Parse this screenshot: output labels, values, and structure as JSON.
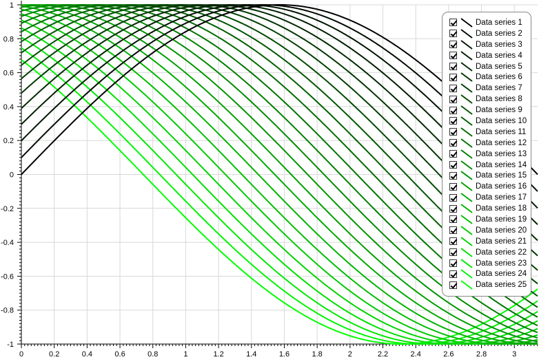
{
  "chart_data": {
    "type": "line",
    "title": "",
    "xlabel": "",
    "ylabel": "",
    "xlim": [
      0,
      3.1416
    ],
    "ylim": [
      -1,
      1
    ],
    "grid": true,
    "legend_placement": "top-right",
    "x_ticks": [
      "0",
      "0.2",
      "0.4",
      "0.6",
      "0.8",
      "1",
      "1.2",
      "1.4",
      "1.6",
      "1.8",
      "2",
      "2.2",
      "2.4",
      "2.6",
      "2.8",
      "3"
    ],
    "y_ticks": [
      "1",
      "0.8",
      "0.6",
      "0.4",
      "0.2",
      "0",
      "-0.2",
      "-0.4",
      "-0.6",
      "-0.8",
      "-1"
    ],
    "function": "y = sin(x + phase)",
    "series": [
      {
        "name": "Data series 1",
        "phase": 0.0,
        "color": "#000000"
      },
      {
        "name": "Data series 2",
        "phase": 0.1,
        "color": "#000a00"
      },
      {
        "name": "Data series 3",
        "phase": 0.2,
        "color": "#001500"
      },
      {
        "name": "Data series 4",
        "phase": 0.3,
        "color": "#001f00"
      },
      {
        "name": "Data series 5",
        "phase": 0.4,
        "color": "#002a00"
      },
      {
        "name": "Data series 6",
        "phase": 0.5,
        "color": "#003500"
      },
      {
        "name": "Data series 7",
        "phase": 0.6,
        "color": "#003f00"
      },
      {
        "name": "Data series 8",
        "phase": 0.7,
        "color": "#004a00"
      },
      {
        "name": "Data series 9",
        "phase": 0.8,
        "color": "#005500"
      },
      {
        "name": "Data series 10",
        "phase": 0.9,
        "color": "#005f00"
      },
      {
        "name": "Data series 11",
        "phase": 1.0,
        "color": "#006a00"
      },
      {
        "name": "Data series 12",
        "phase": 1.1,
        "color": "#007400"
      },
      {
        "name": "Data series 13",
        "phase": 1.2,
        "color": "#007f00"
      },
      {
        "name": "Data series 14",
        "phase": 1.3,
        "color": "#008a00"
      },
      {
        "name": "Data series 15",
        "phase": 1.4,
        "color": "#009400"
      },
      {
        "name": "Data series 16",
        "phase": 1.5,
        "color": "#009f00"
      },
      {
        "name": "Data series 17",
        "phase": 1.6,
        "color": "#00aa00"
      },
      {
        "name": "Data series 18",
        "phase": 1.7,
        "color": "#00b400"
      },
      {
        "name": "Data series 19",
        "phase": 1.8,
        "color": "#00bf00"
      },
      {
        "name": "Data series 20",
        "phase": 1.9,
        "color": "#00ca00"
      },
      {
        "name": "Data series 21",
        "phase": 2.0,
        "color": "#00d400"
      },
      {
        "name": "Data series 22",
        "phase": 2.1,
        "color": "#00df00"
      },
      {
        "name": "Data series 23",
        "phase": 2.2,
        "color": "#00e900"
      },
      {
        "name": "Data series 24",
        "phase": 2.3,
        "color": "#00f400"
      },
      {
        "name": "Data series 25",
        "phase": 2.4,
        "color": "#00ff00"
      }
    ]
  }
}
